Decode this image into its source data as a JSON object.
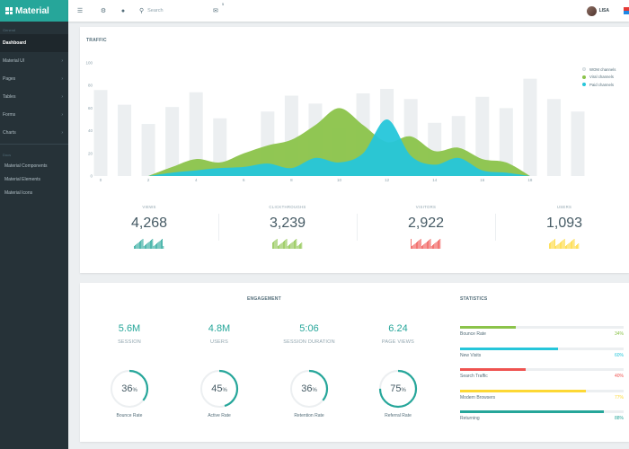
{
  "brand": {
    "title": "Material"
  },
  "sidebar": {
    "section_general": "General",
    "items": [
      {
        "label": "Dashboard",
        "active": true,
        "chevron": ""
      },
      {
        "label": "Material UI",
        "chevron": "›"
      },
      {
        "label": "Pages",
        "chevron": "›"
      },
      {
        "label": "Tables",
        "chevron": "›"
      },
      {
        "label": "Forms",
        "chevron": "›"
      },
      {
        "label": "Charts",
        "chevron": "›"
      }
    ],
    "section_docs": "Docs",
    "sub_items": [
      {
        "label": "Material Components"
      },
      {
        "label": "Material Elements"
      },
      {
        "label": "Material Icons"
      }
    ]
  },
  "topbar": {
    "search_placeholder": "Search",
    "mail_count": "5",
    "user_name": "LISA"
  },
  "icons": {
    "menu": "menu-icon",
    "settings": "gear-icon",
    "palette": "palette-icon",
    "search": "search-icon",
    "mail": "mail-icon"
  },
  "traffic": {
    "title": "TRAFFIC",
    "legend": [
      {
        "label": "WOM channels",
        "color": "#eceff1"
      },
      {
        "label": "Viral channels",
        "color": "#8bc34a"
      },
      {
        "label": "Paid channels",
        "color": "#26c6da"
      }
    ]
  },
  "chart_data": {
    "type": "area",
    "x_ticks": [
      0,
      2,
      4,
      6,
      8,
      10,
      12,
      14,
      16,
      18
    ],
    "y_ticks": [
      0,
      20,
      40,
      60,
      80,
      100
    ],
    "ylim": [
      0,
      100
    ],
    "xlim": [
      0,
      20
    ],
    "bar_series": {
      "name": "WOM channels",
      "x": [
        0,
        1,
        2,
        3,
        4,
        5,
        6,
        7,
        8,
        9,
        10,
        11,
        12,
        13,
        14,
        15,
        16,
        17,
        18,
        19,
        20
      ],
      "values": [
        76,
        63,
        46,
        61,
        74,
        51,
        0,
        57,
        71,
        64,
        42,
        73,
        77,
        68,
        47,
        53,
        70,
        60,
        86,
        68,
        57
      ]
    },
    "series": [
      {
        "name": "Viral channels",
        "x": [
          2,
          3,
          4,
          5,
          6,
          7,
          8,
          9,
          10,
          11,
          12,
          13,
          14,
          15,
          16,
          17,
          18
        ],
        "values": [
          0,
          8,
          15,
          12,
          20,
          27,
          32,
          45,
          60,
          45,
          30,
          35,
          22,
          25,
          15,
          12,
          0
        ]
      },
      {
        "name": "Paid channels",
        "x": [
          2,
          3,
          4,
          5,
          6,
          7,
          8,
          9,
          10,
          11,
          12,
          13,
          14,
          15,
          16,
          17,
          18
        ],
        "values": [
          0,
          3,
          5,
          7,
          8,
          11,
          7,
          16,
          12,
          20,
          50,
          18,
          10,
          16,
          5,
          3,
          0
        ]
      }
    ],
    "colors": {
      "bars": "#eceff1",
      "viral": "#8bc34a",
      "paid": "#26c6da"
    }
  },
  "stats": [
    {
      "label": "VIEWS",
      "value": "4,268",
      "color": "#26a69a"
    },
    {
      "label": "CLICKTHROUGHS",
      "value": "3,239",
      "color": "#8bc34a"
    },
    {
      "label": "VISITORS",
      "value": "2,922",
      "color": "#ef5350"
    },
    {
      "label": "USERS",
      "value": "1,093",
      "color": "#fdd835"
    }
  ],
  "engagement": {
    "title": "ENGAGEMENT",
    "metrics": [
      {
        "value": "5.6M",
        "label": "SESSION"
      },
      {
        "value": "4.8M",
        "label": "USERS"
      },
      {
        "value": "5:06",
        "label": "SESSION DURATION"
      },
      {
        "value": "6.24",
        "label": "PAGE VIEWS"
      }
    ],
    "gauges": [
      {
        "percent": 36,
        "text": "36",
        "suffix": "%",
        "label": "Bounce Rate"
      },
      {
        "percent": 45,
        "text": "45",
        "suffix": "%",
        "label": "Active Rate"
      },
      {
        "percent": 36,
        "text": "36",
        "suffix": "%",
        "label": "Retention Rate"
      },
      {
        "percent": 75,
        "text": "75",
        "suffix": "%",
        "label": "Referral Rate"
      }
    ],
    "accent": "#26a69a"
  },
  "statistics": {
    "title": "STATISTICS",
    "bars": [
      {
        "label": "Bounce Rate",
        "percent": 34,
        "text": "34%",
        "color": "#8bc34a"
      },
      {
        "label": "New Visits",
        "percent": 60,
        "text": "60%",
        "color": "#26c6da"
      },
      {
        "label": "Search Traffic",
        "percent": 40,
        "text": "40%",
        "color": "#ef5350"
      },
      {
        "label": "Modern Browsers",
        "percent": 77,
        "text": "77%",
        "color": "#fdd835"
      },
      {
        "label": "Returning",
        "percent": 88,
        "text": "88%",
        "color": "#26a69a"
      }
    ]
  }
}
